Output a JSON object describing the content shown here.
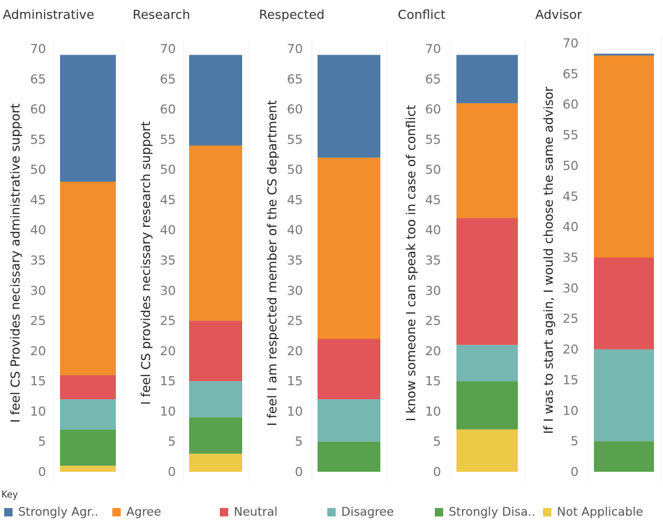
{
  "chart_data": {
    "type": "bar",
    "stacked": true,
    "ylim": [
      0,
      70
    ],
    "yticks": [
      "0",
      "5",
      "10",
      "15",
      "20",
      "25",
      "30",
      "35",
      "40",
      "45",
      "50",
      "55",
      "60",
      "65",
      "70"
    ],
    "panels": [
      {
        "title": "Administrative",
        "ylabel": "I feel CS Provides necissary administrative support",
        "values": {
          "Not Applicable": 1,
          "Strongly Disagree": 6,
          "Disagree": 5,
          "Neutral": 4,
          "Agree": 32,
          "Strongly Agree": 21
        }
      },
      {
        "title": "Research",
        "ylabel": "I feel CS provides necissary research support",
        "values": {
          "Not Applicable": 3,
          "Strongly Disagree": 6,
          "Disagree": 6,
          "Neutral": 10,
          "Agree": 29,
          "Strongly Agree": 15
        }
      },
      {
        "title": "Respected",
        "ylabel": "I feel I am respected member of the CS department",
        "values": {
          "Not Applicable": 0,
          "Strongly Disagree": 5,
          "Disagree": 7,
          "Neutral": 10,
          "Agree": 30,
          "Strongly Agree": 17
        }
      },
      {
        "title": "Conflict",
        "ylabel": "I know someone I can speak too in case of conflict",
        "values": {
          "Not Applicable": 7,
          "Strongly Disagree": 8,
          "Disagree": 6,
          "Neutral": 21,
          "Agree": 19,
          "Strongly Agree": 8
        }
      },
      {
        "title": "Advisor",
        "ylabel": "If I was to start again, I would choose the same advisor",
        "values": {
          "Not Applicable": 0,
          "Strongly Disagree": 5,
          "Disagree": 15,
          "Neutral": 15,
          "Agree": 33,
          "Strongly Agree": 0.3
        }
      }
    ],
    "stack_order": [
      "Not Applicable",
      "Strongly Disagree",
      "Disagree",
      "Neutral",
      "Agree",
      "Strongly Agree"
    ],
    "series_colors": {
      "Strongly Agree": "#4e79a7",
      "Agree": "#f28e2b",
      "Neutral": "#e15759",
      "Disagree": "#76b7b2",
      "Strongly Disagree": "#59a14f",
      "Not Applicable": "#edc948"
    }
  },
  "legend": {
    "title": "Key",
    "items": [
      {
        "label": "Strongly Agr..",
        "series": "Strongly Agree",
        "color": "#4e79a7"
      },
      {
        "label": "Agree",
        "series": "Agree",
        "color": "#f28e2b"
      },
      {
        "label": "Neutral",
        "series": "Neutral",
        "color": "#e15759"
      },
      {
        "label": "Disagree",
        "series": "Disagree",
        "color": "#76b7b2"
      },
      {
        "label": "Strongly Disa..",
        "series": "Strongly Disagree",
        "color": "#59a14f"
      },
      {
        "label": "Not Applicable",
        "series": "Not Applicable",
        "color": "#edc948"
      }
    ]
  }
}
